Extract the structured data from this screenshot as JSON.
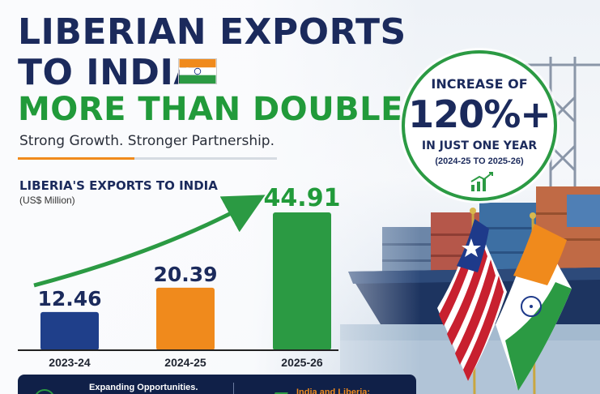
{
  "header": {
    "line1": "LIBERIAN EXPORTS",
    "line2": "TO INDIA",
    "line3": "MORE THAN DOUBLE!",
    "subtitle": "Strong Growth. Stronger Partnership."
  },
  "badge": {
    "top": "INCREASE OF",
    "big": "120%+",
    "mid": "IN JUST ONE YEAR",
    "small": "(2024-25 TO 2025-26)",
    "icon": "growth-chart-icon"
  },
  "banner": {
    "left": "Expanding Opportunities.",
    "right": "India and Liberia:"
  },
  "colors": {
    "navy": "#1b2a5c",
    "green": "#219a3a",
    "orange": "#f08a1c"
  },
  "chart_data": {
    "type": "bar",
    "title": "LIBERIA'S EXPORTS TO INDIA",
    "unit": "(US$ Million)",
    "categories": [
      "2023-24",
      "2024-25",
      "2025-26"
    ],
    "values": [
      12.46,
      20.39,
      44.91
    ],
    "value_labels": [
      "12.46",
      "20.39",
      "44.91"
    ],
    "colors": [
      "#1f3f8a",
      "#f08a1c",
      "#2b9a43"
    ],
    "ylim": [
      0,
      50
    ],
    "grid": false,
    "trend_arrow": true
  }
}
